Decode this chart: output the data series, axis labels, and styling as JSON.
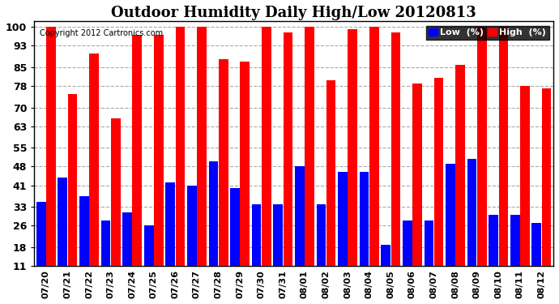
{
  "title": "Outdoor Humidity Daily High/Low 20120813",
  "copyright": "Copyright 2012 Cartronics.com",
  "labels": [
    "07/20",
    "07/21",
    "07/22",
    "07/23",
    "07/24",
    "07/25",
    "07/26",
    "07/27",
    "07/28",
    "07/29",
    "07/30",
    "07/31",
    "08/01",
    "08/02",
    "08/03",
    "08/04",
    "08/05",
    "08/06",
    "08/07",
    "08/08",
    "08/09",
    "08/10",
    "08/11",
    "08/12"
  ],
  "high_values": [
    100,
    75,
    90,
    66,
    97,
    97,
    100,
    100,
    88,
    87,
    100,
    98,
    100,
    80,
    99,
    100,
    98,
    79,
    81,
    86,
    100,
    100,
    78,
    77
  ],
  "low_values": [
    35,
    44,
    37,
    28,
    31,
    26,
    42,
    41,
    50,
    40,
    34,
    34,
    48,
    34,
    46,
    46,
    19,
    28,
    28,
    49,
    51,
    30,
    30,
    27
  ],
  "bar_color_high": "#FF0000",
  "bar_color_low": "#0000FF",
  "background_color": "#FFFFFF",
  "grid_color": "#AAAAAA",
  "yticks": [
    11,
    18,
    26,
    33,
    41,
    48,
    55,
    63,
    70,
    78,
    85,
    93,
    100
  ],
  "ylim": [
    11,
    102
  ],
  "title_fontsize": 13,
  "legend_low_label": "Low  (%)",
  "legend_high_label": "High  (%)"
}
